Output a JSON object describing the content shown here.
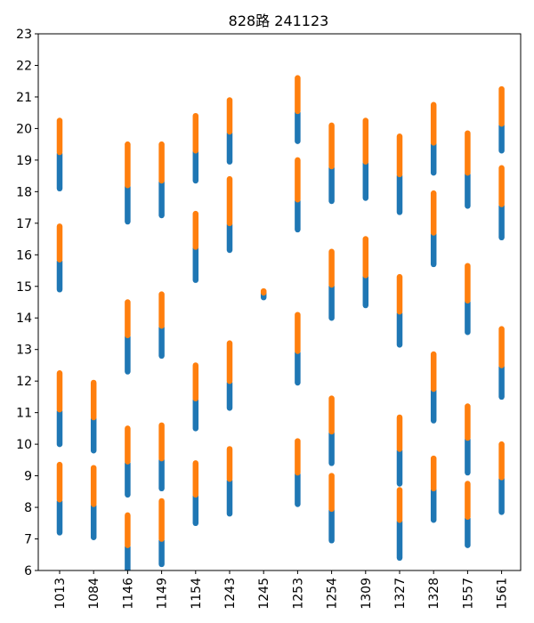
{
  "chart_data": {
    "type": "scatter",
    "title": "828路 241123",
    "xlabel": "",
    "ylabel": "",
    "categories": [
      "1013",
      "1084",
      "1146",
      "1149",
      "1154",
      "1243",
      "1245",
      "1253",
      "1254",
      "1309",
      "1327",
      "1328",
      "1557",
      "1561"
    ],
    "ylim": [
      6,
      23
    ],
    "yticks": [
      6,
      7,
      8,
      9,
      10,
      11,
      12,
      13,
      14,
      15,
      16,
      17,
      18,
      19,
      20,
      21,
      22,
      23
    ],
    "grid": false,
    "series": [
      {
        "color": "#1f77b4",
        "segments": [
          {
            "x": "1013",
            "y": [
              7.2,
              8.2
            ]
          },
          {
            "x": "1013",
            "y": [
              10.0,
              11.05
            ]
          },
          {
            "x": "1013",
            "y": [
              14.9,
              15.8
            ]
          },
          {
            "x": "1013",
            "y": [
              18.1,
              19.2
            ]
          },
          {
            "x": "1084",
            "y": [
              7.05,
              8.05
            ]
          },
          {
            "x": "1084",
            "y": [
              9.8,
              10.8
            ]
          },
          {
            "x": "1146",
            "y": [
              6.0,
              6.75
            ]
          },
          {
            "x": "1146",
            "y": [
              8.4,
              9.4
            ]
          },
          {
            "x": "1146",
            "y": [
              12.3,
              13.4
            ]
          },
          {
            "x": "1146",
            "y": [
              17.05,
              18.15
            ]
          },
          {
            "x": "1149",
            "y": [
              6.2,
              6.95
            ]
          },
          {
            "x": "1149",
            "y": [
              8.6,
              9.5
            ]
          },
          {
            "x": "1149",
            "y": [
              12.8,
              13.7
            ]
          },
          {
            "x": "1149",
            "y": [
              17.25,
              18.3
            ]
          },
          {
            "x": "1154",
            "y": [
              7.5,
              8.35
            ]
          },
          {
            "x": "1154",
            "y": [
              10.5,
              11.4
            ]
          },
          {
            "x": "1154",
            "y": [
              15.2,
              16.2
            ]
          },
          {
            "x": "1154",
            "y": [
              18.35,
              19.25
            ]
          },
          {
            "x": "1243",
            "y": [
              7.8,
              8.85
            ]
          },
          {
            "x": "1243",
            "y": [
              11.15,
              11.95
            ]
          },
          {
            "x": "1243",
            "y": [
              16.15,
              16.95
            ]
          },
          {
            "x": "1243",
            "y": [
              18.95,
              19.85
            ]
          },
          {
            "x": "1245",
            "y": [
              14.65,
              14.8
            ]
          },
          {
            "x": "1253",
            "y": [
              8.1,
              9.05
            ]
          },
          {
            "x": "1253",
            "y": [
              11.95,
              12.9
            ]
          },
          {
            "x": "1253",
            "y": [
              16.8,
              17.7
            ]
          },
          {
            "x": "1253",
            "y": [
              19.6,
              20.5
            ]
          },
          {
            "x": "1254",
            "y": [
              6.95,
              7.9
            ]
          },
          {
            "x": "1254",
            "y": [
              9.4,
              10.35
            ]
          },
          {
            "x": "1254",
            "y": [
              14.0,
              15.0
            ]
          },
          {
            "x": "1254",
            "y": [
              17.7,
              18.75
            ]
          },
          {
            "x": "1309",
            "y": [
              14.4,
              15.3
            ]
          },
          {
            "x": "1309",
            "y": [
              17.8,
              18.9
            ]
          },
          {
            "x": "1327",
            "y": [
              6.4,
              7.55
            ]
          },
          {
            "x": "1327",
            "y": [
              8.75,
              9.8
            ]
          },
          {
            "x": "1327",
            "y": [
              13.15,
              14.15
            ]
          },
          {
            "x": "1327",
            "y": [
              17.35,
              18.5
            ]
          },
          {
            "x": "1328",
            "y": [
              7.6,
              8.55
            ]
          },
          {
            "x": "1328",
            "y": [
              10.75,
              11.7
            ]
          },
          {
            "x": "1328",
            "y": [
              15.7,
              16.65
            ]
          },
          {
            "x": "1328",
            "y": [
              18.6,
              19.5
            ]
          },
          {
            "x": "1557",
            "y": [
              6.8,
              7.65
            ]
          },
          {
            "x": "1557",
            "y": [
              9.1,
              10.15
            ]
          },
          {
            "x": "1557",
            "y": [
              13.55,
              14.5
            ]
          },
          {
            "x": "1557",
            "y": [
              17.55,
              18.55
            ]
          },
          {
            "x": "1561",
            "y": [
              7.85,
              8.9
            ]
          },
          {
            "x": "1561",
            "y": [
              11.5,
              12.45
            ]
          },
          {
            "x": "1561",
            "y": [
              16.55,
              17.55
            ]
          },
          {
            "x": "1561",
            "y": [
              19.3,
              20.1
            ]
          }
        ]
      },
      {
        "color": "#ff7f0e",
        "segments": [
          {
            "x": "1013",
            "y": [
              8.25,
              9.35
            ]
          },
          {
            "x": "1013",
            "y": [
              11.1,
              12.25
            ]
          },
          {
            "x": "1013",
            "y": [
              15.85,
              16.9
            ]
          },
          {
            "x": "1013",
            "y": [
              19.25,
              20.25
            ]
          },
          {
            "x": "1084",
            "y": [
              8.1,
              9.25
            ]
          },
          {
            "x": "1084",
            "y": [
              10.85,
              11.95
            ]
          },
          {
            "x": "1146",
            "y": [
              6.8,
              7.75
            ]
          },
          {
            "x": "1146",
            "y": [
              9.45,
              10.5
            ]
          },
          {
            "x": "1146",
            "y": [
              13.45,
              14.5
            ]
          },
          {
            "x": "1146",
            "y": [
              18.2,
              19.5
            ]
          },
          {
            "x": "1149",
            "y": [
              7.0,
              8.2
            ]
          },
          {
            "x": "1149",
            "y": [
              9.55,
              10.6
            ]
          },
          {
            "x": "1149",
            "y": [
              13.75,
              14.75
            ]
          },
          {
            "x": "1149",
            "y": [
              18.35,
              19.5
            ]
          },
          {
            "x": "1154",
            "y": [
              8.4,
              9.4
            ]
          },
          {
            "x": "1154",
            "y": [
              11.45,
              12.5
            ]
          },
          {
            "x": "1154",
            "y": [
              16.25,
              17.3
            ]
          },
          {
            "x": "1154",
            "y": [
              19.3,
              20.4
            ]
          },
          {
            "x": "1243",
            "y": [
              8.9,
              9.85
            ]
          },
          {
            "x": "1243",
            "y": [
              12.0,
              13.2
            ]
          },
          {
            "x": "1243",
            "y": [
              17.0,
              18.4
            ]
          },
          {
            "x": "1243",
            "y": [
              19.9,
              20.9
            ]
          },
          {
            "x": "1245",
            "y": [
              14.8,
              14.85
            ]
          },
          {
            "x": "1253",
            "y": [
              9.1,
              10.1
            ]
          },
          {
            "x": "1253",
            "y": [
              12.95,
              14.1
            ]
          },
          {
            "x": "1253",
            "y": [
              17.75,
              19.0
            ]
          },
          {
            "x": "1253",
            "y": [
              20.55,
              21.6
            ]
          },
          {
            "x": "1254",
            "y": [
              7.95,
              9.0
            ]
          },
          {
            "x": "1254",
            "y": [
              10.4,
              11.45
            ]
          },
          {
            "x": "1254",
            "y": [
              15.05,
              16.1
            ]
          },
          {
            "x": "1254",
            "y": [
              18.8,
              20.1
            ]
          },
          {
            "x": "1309",
            "y": [
              15.35,
              16.5
            ]
          },
          {
            "x": "1309",
            "y": [
              18.95,
              20.25
            ]
          },
          {
            "x": "1327",
            "y": [
              7.6,
              8.55
            ]
          },
          {
            "x": "1327",
            "y": [
              9.85,
              10.85
            ]
          },
          {
            "x": "1327",
            "y": [
              14.2,
              15.3
            ]
          },
          {
            "x": "1327",
            "y": [
              18.55,
              19.75
            ]
          },
          {
            "x": "1328",
            "y": [
              8.6,
              9.55
            ]
          },
          {
            "x": "1328",
            "y": [
              11.75,
              12.85
            ]
          },
          {
            "x": "1328",
            "y": [
              16.7,
              17.95
            ]
          },
          {
            "x": "1328",
            "y": [
              19.55,
              20.75
            ]
          },
          {
            "x": "1557",
            "y": [
              7.7,
              8.75
            ]
          },
          {
            "x": "1557",
            "y": [
              10.2,
              11.2
            ]
          },
          {
            "x": "1557",
            "y": [
              14.55,
              15.65
            ]
          },
          {
            "x": "1557",
            "y": [
              18.6,
              19.85
            ]
          },
          {
            "x": "1561",
            "y": [
              8.95,
              10.0
            ]
          },
          {
            "x": "1561",
            "y": [
              12.5,
              13.65
            ]
          },
          {
            "x": "1561",
            "y": [
              17.6,
              18.75
            ]
          },
          {
            "x": "1561",
            "y": [
              20.15,
              21.25
            ]
          }
        ]
      }
    ]
  }
}
